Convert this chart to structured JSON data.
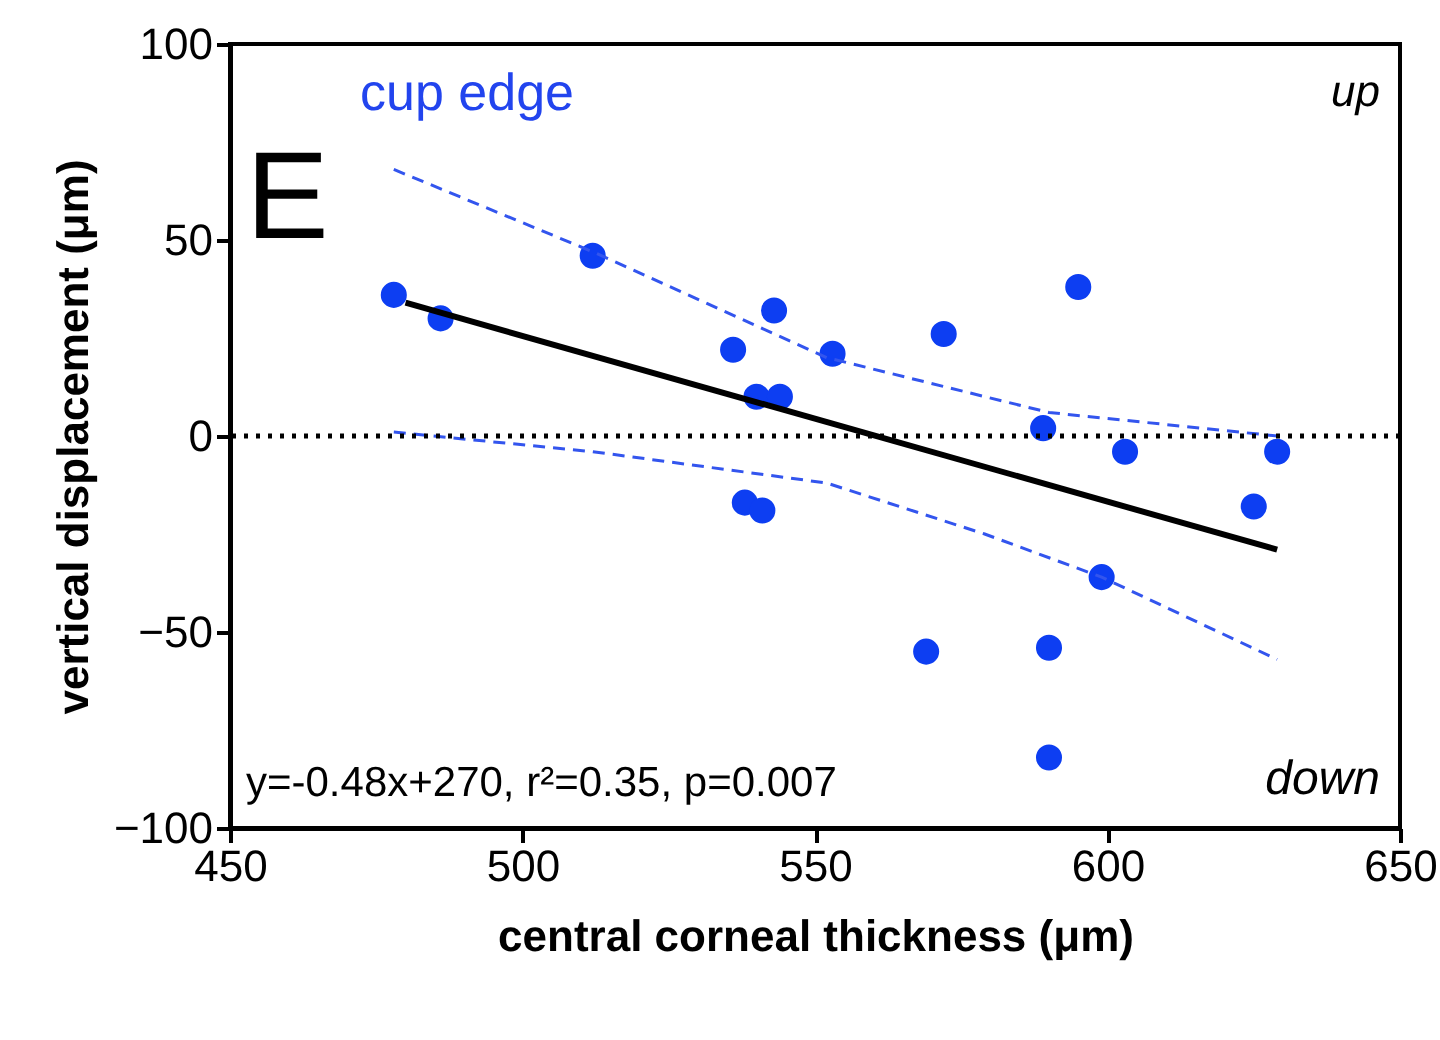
{
  "chart_data": {
    "type": "scatter",
    "xlabel": "central corneal thickness (μm)",
    "ylabel": "vertical displacement (μm)",
    "xlim": [
      450,
      650
    ],
    "xticks": [
      450,
      500,
      550,
      600,
      650
    ],
    "ylim": [
      -100,
      100
    ],
    "yticks": [
      -100,
      -50,
      0,
      50,
      100
    ],
    "grid": false,
    "series": [
      {
        "marker": "circle",
        "color": "#0d3ef2",
        "x": [
          478,
          486,
          512,
          536,
          543,
          540,
          544,
          553,
          538,
          541,
          572,
          589,
          595,
          603,
          629,
          625,
          599,
          569,
          590,
          590
        ],
        "values": [
          36,
          30,
          46,
          22,
          32,
          10,
          10,
          21,
          -17,
          -19,
          26,
          2,
          38,
          -4,
          -4,
          -18,
          -36,
          -55,
          -54,
          -82
        ]
      },
      {
        "type": "line",
        "color": "#000000",
        "line_style": "solid",
        "x": [
          480,
          629
        ],
        "values": [
          34,
          -29
        ]
      },
      {
        "type": "line",
        "color": "#3355ee",
        "line_style": "dashed",
        "x": [
          478,
          512,
          552,
          590,
          629
        ],
        "values": [
          68,
          47,
          20,
          6,
          0
        ]
      },
      {
        "type": "line",
        "color": "#3355ee",
        "line_style": "dashed",
        "x": [
          478,
          512,
          552,
          579,
          599,
          629
        ],
        "values": [
          1,
          -4,
          -12,
          -25,
          -36,
          -57
        ]
      }
    ],
    "ref_lines": [
      {
        "axis": "y",
        "value": 0,
        "color": "#000000",
        "line_style": "dotted"
      }
    ],
    "annotations": [
      "E",
      "cup edge",
      "up",
      "down",
      "y=-0.48x+270, r²=0.35, p=0.007"
    ]
  }
}
